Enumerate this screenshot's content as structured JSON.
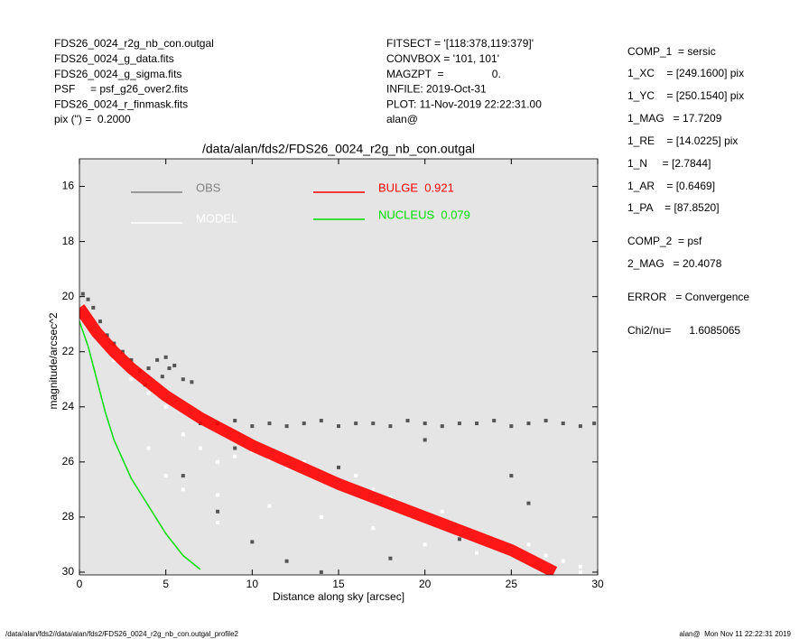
{
  "chart_data": {
    "type": "scatter",
    "title": "/data/alan/fds2/FDS26_0024_r2g_nb_con.outgal",
    "x_label": "Distance along sky [arcsec]",
    "y_label": "magnitude/arcsec^2",
    "header_left": [
      "FDS26_0024_r2g_nb_con.outgal",
      "FDS26_0024_g_data.fits",
      "FDS26_0024_g_sigma.fits",
      "PSF     = psf_g26_over2.fits",
      "FDS26_0024_r_finmask.fits",
      "pix (\") =  0.2000"
    ],
    "header_center": [
      "FITSECT = '[118:378,119:379]'",
      "CONVBOX = '101, 101'",
      "MAGZPT  =                0.",
      "INFILE: 2019-Oct-31",
      "PLOT: 11-Nov-2019 22:22:31.00",
      "alan@"
    ],
    "fit_summary": [
      "COMP_1  = sersic",
      "1_XC    = [249.1600] pix",
      "1_YC    = [250.1540] pix",
      "1_MAG   = 17.7209",
      "1_RE    = [14.0225] pix",
      "1_N     = [2.7844]",
      "1_AR    = [0.6469]",
      "1_PA    = [87.8520]",
      "COMP_2  = psf",
      "2_MAG   = 20.4078",
      "ERROR   = Convergence",
      "Chi2/nu=      1.6085065"
    ],
    "footer_left": "/data/alan/fds2//data/alan/fds2/FDS26_0024_r2g_nb_con.outgal_profile2",
    "footer_right": "alan@  Mon Nov 11 22:22:31 2019",
    "xlim": [
      0,
      30
    ],
    "xticks": [
      0,
      5,
      10,
      15,
      20,
      25,
      30
    ],
    "ylim": [
      30.1,
      15
    ],
    "yticks": [
      16,
      18,
      20,
      22,
      24,
      26,
      28,
      30
    ],
    "series": [
      {
        "name": "OBS",
        "color": "#555555",
        "mode": "points",
        "x": [
          0.2,
          0.5,
          0.8,
          1.2,
          1.6,
          2.0,
          2.5,
          3.0,
          3.5,
          4.0,
          4.5,
          5.0,
          5.5,
          6.0,
          6.5,
          4.8,
          5.2,
          3.8,
          7,
          8,
          9,
          10,
          11,
          12,
          13,
          14,
          15,
          16,
          17,
          18,
          19,
          20,
          21,
          22,
          23,
          24,
          25,
          26,
          27,
          28,
          29,
          29.8,
          6,
          8,
          10,
          12,
          14,
          18,
          22,
          26,
          9,
          15,
          20,
          25
        ],
        "values": [
          19.9,
          20.1,
          20.4,
          20.9,
          21.4,
          21.7,
          22.0,
          22.3,
          22.7,
          22.6,
          22.3,
          22.2,
          22.5,
          23.0,
          23.1,
          22.9,
          22.6,
          23.2,
          24.6,
          24.6,
          24.5,
          24.7,
          24.6,
          24.7,
          24.6,
          24.5,
          24.7,
          24.6,
          24.6,
          24.7,
          24.5,
          24.6,
          24.7,
          24.6,
          24.6,
          24.5,
          24.7,
          24.6,
          24.5,
          24.6,
          24.7,
          24.6,
          26.5,
          27.8,
          28.9,
          29.6,
          30.0,
          29.5,
          28.8,
          27.5,
          25.5,
          26.2,
          25.2,
          26.5
        ]
      },
      {
        "name": "MODEL",
        "color": "#ffffff",
        "mode": "points",
        "x": [
          1,
          2,
          3,
          4,
          5,
          6,
          7,
          8,
          9,
          10,
          11,
          12,
          13,
          14,
          15,
          16,
          17,
          18,
          19,
          20,
          21,
          22,
          23,
          24,
          25,
          26,
          27,
          28,
          29,
          5,
          8,
          11,
          14,
          17,
          20,
          23,
          26,
          29,
          4,
          6,
          8
        ],
        "values": [
          21.5,
          22.3,
          23.0,
          23.5,
          24.0,
          25.0,
          25.5,
          26.0,
          25.8,
          25.6,
          25.9,
          26.2,
          26.0,
          26.4,
          26.8,
          26.5,
          27.0,
          27.3,
          27.6,
          28.1,
          27.8,
          28.5,
          28.6,
          28.8,
          29.1,
          29.0,
          29.4,
          29.6,
          29.8,
          26.5,
          27.2,
          27.6,
          28.0,
          28.4,
          29.0,
          29.3,
          29.6,
          30.0,
          25.5,
          27.0,
          28.2
        ]
      },
      {
        "name": "BULGE  0.921",
        "color": "#ff0000",
        "mode": "band",
        "x": [
          0,
          1,
          2,
          3,
          5,
          7,
          10,
          15,
          20,
          25,
          27.5
        ],
        "values": [
          20.4,
          21.3,
          22.0,
          22.6,
          23.6,
          24.4,
          25.4,
          26.8,
          28.0,
          29.2,
          30.0
        ]
      },
      {
        "name": "NUCLEUS  0.079",
        "color": "#00dd00",
        "mode": "line",
        "x": [
          0,
          0.5,
          1,
          1.5,
          2,
          3,
          4,
          5,
          6,
          7
        ],
        "values": [
          20.9,
          21.8,
          23.0,
          24.2,
          25.2,
          26.6,
          27.6,
          28.6,
          29.4,
          29.9
        ]
      }
    ]
  }
}
